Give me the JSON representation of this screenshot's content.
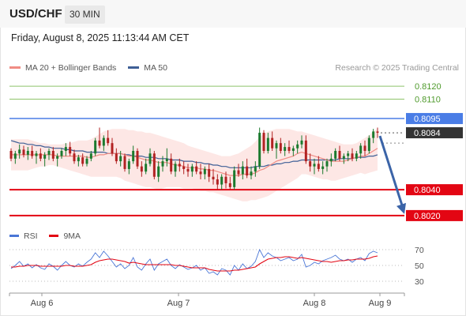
{
  "header": {
    "symbol": "USD/CHF",
    "timeframe": "30 MIN"
  },
  "datetime": "Friday, August 8, 2025 11:13:44 AM CET",
  "source": "Research © 2025 Trading Central",
  "colors": {
    "ma20": "#f08c84",
    "ma50": "#3e5f96",
    "bollinger_fill": "#fde3e1",
    "resistance_line": "#8ec46a",
    "resistance_text": "#4f9a2c",
    "pivot_line": "#4a7de6",
    "pivot_tag": "#4a7de6",
    "support_line": "#e30613",
    "support_tag": "#e30613",
    "last_price_tag": "#333333",
    "candle_bull": "#1b7a2e",
    "candle_bear": "#b22222",
    "rsi": "#4a76d6",
    "rsi_ma": "#e30613",
    "arrow": "#3b64a8"
  },
  "price_legend": [
    {
      "label": "MA 20 + Bollinger Bands",
      "color": "#f08c84"
    },
    {
      "label": "MA 50",
      "color": "#3e5f96"
    }
  ],
  "rsi_legend": [
    {
      "label": "RSI",
      "color": "#4a76d6"
    },
    {
      "label": "9MA",
      "color": "#e30613"
    }
  ],
  "chart_data": [
    {
      "type": "candlestick",
      "title": "",
      "x_tick_labels": [
        "Aug 6",
        "Aug 7",
        "Aug 8",
        "Aug 9"
      ],
      "y_range": [
        0.8012,
        0.8128
      ],
      "levels": [
        {
          "value": 0.812,
          "label": "0.8120",
          "kind": "resistance"
        },
        {
          "value": 0.811,
          "label": "0.8110",
          "kind": "resistance"
        },
        {
          "value": 0.8095,
          "label": "0.8095",
          "kind": "pivot"
        },
        {
          "value": 0.8084,
          "label": "0.8084",
          "kind": "last"
        },
        {
          "value": 0.804,
          "label": "0.8040",
          "kind": "support"
        },
        {
          "value": 0.802,
          "label": "0.8020",
          "kind": "support"
        }
      ],
      "candles_ohlc": [
        [
          0.807,
          0.8072,
          0.8062,
          0.8064
        ],
        [
          0.8064,
          0.807,
          0.806,
          0.8068
        ],
        [
          0.8068,
          0.8075,
          0.8064,
          0.8071
        ],
        [
          0.8071,
          0.8074,
          0.8065,
          0.8067
        ],
        [
          0.8067,
          0.8073,
          0.8063,
          0.807
        ],
        [
          0.807,
          0.8074,
          0.8064,
          0.8066
        ],
        [
          0.8066,
          0.807,
          0.806,
          0.8068
        ],
        [
          0.8068,
          0.8072,
          0.8062,
          0.8064
        ],
        [
          0.8064,
          0.8069,
          0.8058,
          0.8067
        ],
        [
          0.8067,
          0.8072,
          0.8063,
          0.807
        ],
        [
          0.807,
          0.8073,
          0.8062,
          0.8064
        ],
        [
          0.8064,
          0.8068,
          0.8058,
          0.8066
        ],
        [
          0.8066,
          0.8072,
          0.8064,
          0.807
        ],
        [
          0.807,
          0.8076,
          0.8066,
          0.8073
        ],
        [
          0.8073,
          0.8077,
          0.8066,
          0.8068
        ],
        [
          0.8068,
          0.8071,
          0.806,
          0.8062
        ],
        [
          0.8062,
          0.8067,
          0.8058,
          0.8065
        ],
        [
          0.8065,
          0.8068,
          0.8058,
          0.806
        ],
        [
          0.806,
          0.8066,
          0.8058,
          0.8064
        ],
        [
          0.8064,
          0.807,
          0.8062,
          0.8068
        ],
        [
          0.8068,
          0.808,
          0.8066,
          0.8078
        ],
        [
          0.8078,
          0.8088,
          0.8072,
          0.8074
        ],
        [
          0.8074,
          0.8082,
          0.807,
          0.808
        ],
        [
          0.808,
          0.8086,
          0.8074,
          0.8076
        ],
        [
          0.8076,
          0.808,
          0.8066,
          0.8068
        ],
        [
          0.8068,
          0.8072,
          0.806,
          0.8062
        ],
        [
          0.8062,
          0.807,
          0.8058,
          0.8066
        ],
        [
          0.8066,
          0.8068,
          0.8054,
          0.8056
        ],
        [
          0.8056,
          0.8064,
          0.8052,
          0.8062
        ],
        [
          0.8062,
          0.8074,
          0.806,
          0.807
        ],
        [
          0.807,
          0.8072,
          0.8056,
          0.8058
        ],
        [
          0.8058,
          0.8062,
          0.805,
          0.8054
        ],
        [
          0.8054,
          0.8064,
          0.8052,
          0.806
        ],
        [
          0.806,
          0.8072,
          0.8058,
          0.8068
        ],
        [
          0.8068,
          0.807,
          0.8048,
          0.805
        ],
        [
          0.805,
          0.8062,
          0.8046,
          0.8058
        ],
        [
          0.8058,
          0.8066,
          0.8054,
          0.8062
        ],
        [
          0.8062,
          0.8072,
          0.8058,
          0.8064
        ],
        [
          0.8064,
          0.8068,
          0.8052,
          0.8054
        ],
        [
          0.8054,
          0.8062,
          0.805,
          0.806
        ],
        [
          0.806,
          0.8064,
          0.8054,
          0.8058
        ],
        [
          0.8058,
          0.8062,
          0.8052,
          0.8056
        ],
        [
          0.8056,
          0.806,
          0.805,
          0.8054
        ],
        [
          0.8054,
          0.806,
          0.805,
          0.8058
        ],
        [
          0.8058,
          0.8062,
          0.8052,
          0.8054
        ],
        [
          0.8054,
          0.806,
          0.8048,
          0.8052
        ],
        [
          0.8052,
          0.8058,
          0.8048,
          0.8056
        ],
        [
          0.8056,
          0.806,
          0.8046,
          0.805
        ],
        [
          0.805,
          0.8056,
          0.8044,
          0.8048
        ],
        [
          0.8048,
          0.8052,
          0.804,
          0.8044
        ],
        [
          0.8044,
          0.8052,
          0.804,
          0.805
        ],
        [
          0.805,
          0.8054,
          0.8041,
          0.8045
        ],
        [
          0.8045,
          0.805,
          0.804,
          0.8042
        ],
        [
          0.8042,
          0.8058,
          0.804,
          0.8055
        ],
        [
          0.8055,
          0.806,
          0.805,
          0.8052
        ],
        [
          0.8052,
          0.8062,
          0.8048,
          0.8058
        ],
        [
          0.8058,
          0.8064,
          0.8049,
          0.8051
        ],
        [
          0.8051,
          0.8058,
          0.8048,
          0.8054
        ],
        [
          0.8054,
          0.8062,
          0.805,
          0.8058
        ],
        [
          0.8058,
          0.8088,
          0.8056,
          0.8084
        ],
        [
          0.8084,
          0.8086,
          0.8068,
          0.807
        ],
        [
          0.807,
          0.8084,
          0.8068,
          0.808
        ],
        [
          0.808,
          0.8085,
          0.807,
          0.8072
        ],
        [
          0.8072,
          0.8078,
          0.8064,
          0.8076
        ],
        [
          0.8076,
          0.808,
          0.8068,
          0.807
        ],
        [
          0.807,
          0.8076,
          0.8066,
          0.8073
        ],
        [
          0.8073,
          0.8078,
          0.8068,
          0.807
        ],
        [
          0.807,
          0.8074,
          0.8066,
          0.8072
        ],
        [
          0.8072,
          0.8078,
          0.8068,
          0.8075
        ],
        [
          0.8075,
          0.8082,
          0.8072,
          0.8078
        ],
        [
          0.8078,
          0.8082,
          0.806,
          0.8062
        ],
        [
          0.8062,
          0.8068,
          0.8054,
          0.8058
        ],
        [
          0.8058,
          0.8064,
          0.8052,
          0.806
        ],
        [
          0.806,
          0.8066,
          0.8054,
          0.8056
        ],
        [
          0.8056,
          0.8062,
          0.8052,
          0.8058
        ],
        [
          0.8058,
          0.8064,
          0.8054,
          0.8062
        ],
        [
          0.8062,
          0.8068,
          0.8058,
          0.8064
        ],
        [
          0.8064,
          0.8072,
          0.8062,
          0.807
        ],
        [
          0.807,
          0.8074,
          0.8062,
          0.8064
        ],
        [
          0.8064,
          0.8068,
          0.806,
          0.8066
        ],
        [
          0.8066,
          0.807,
          0.8062,
          0.8068
        ],
        [
          0.8068,
          0.8072,
          0.8062,
          0.8064
        ],
        [
          0.8064,
          0.807,
          0.8062,
          0.8068
        ],
        [
          0.8068,
          0.8076,
          0.8064,
          0.8074
        ],
        [
          0.8074,
          0.8078,
          0.8066,
          0.807
        ],
        [
          0.807,
          0.8082,
          0.8068,
          0.808
        ],
        [
          0.808,
          0.8087,
          0.8076,
          0.8085
        ],
        [
          0.8085,
          0.8088,
          0.808,
          0.8084
        ]
      ],
      "ma20": [
        0.8067,
        0.8067,
        0.8067,
        0.8067,
        0.8067,
        0.8067,
        0.8067,
        0.8067,
        0.8067,
        0.8067,
        0.8067,
        0.8066,
        0.8066,
        0.8066,
        0.8066,
        0.8066,
        0.8066,
        0.8066,
        0.8065,
        0.8065,
        0.8066,
        0.8067,
        0.8067,
        0.8068,
        0.8068,
        0.8068,
        0.8068,
        0.8067,
        0.8066,
        0.8066,
        0.8065,
        0.8064,
        0.8063,
        0.8063,
        0.8062,
        0.8061,
        0.8061,
        0.8061,
        0.806,
        0.8059,
        0.8059,
        0.8058,
        0.8057,
        0.8057,
        0.8057,
        0.8056,
        0.8056,
        0.8055,
        0.8055,
        0.8054,
        0.8053,
        0.8052,
        0.8051,
        0.8051,
        0.8051,
        0.8052,
        0.8052,
        0.8052,
        0.8053,
        0.8055,
        0.8056,
        0.8058,
        0.806,
        0.8062,
        0.8063,
        0.8064,
        0.8065,
        0.8066,
        0.8068,
        0.8069,
        0.8068,
        0.8067,
        0.8066,
        0.8065,
        0.8064,
        0.8063,
        0.8062,
        0.8062,
        0.8062,
        0.8062,
        0.8063,
        0.8064,
        0.8065,
        0.8066,
        0.8066,
        0.8068,
        0.807,
        0.8072
      ],
      "bollinger_upper": [
        0.8079,
        0.8079,
        0.8079,
        0.8079,
        0.8079,
        0.8078,
        0.8077,
        0.8076,
        0.8076,
        0.8075,
        0.8075,
        0.8075,
        0.8075,
        0.8076,
        0.8076,
        0.8077,
        0.8078,
        0.8078,
        0.8078,
        0.8079,
        0.8081,
        0.8083,
        0.8085,
        0.8086,
        0.8087,
        0.8087,
        0.8087,
        0.8087,
        0.8086,
        0.8086,
        0.8085,
        0.8085,
        0.8084,
        0.8084,
        0.8083,
        0.8082,
        0.8081,
        0.808,
        0.8079,
        0.8078,
        0.8077,
        0.8076,
        0.8074,
        0.8073,
        0.8072,
        0.8071,
        0.807,
        0.8069,
        0.8068,
        0.8067,
        0.8066,
        0.8066,
        0.8066,
        0.8067,
        0.8068,
        0.807,
        0.8072,
        0.8074,
        0.8077,
        0.8081,
        0.8083,
        0.8085,
        0.8086,
        0.8087,
        0.8087,
        0.8087,
        0.8087,
        0.8086,
        0.8085,
        0.8085,
        0.8084,
        0.8083,
        0.8082,
        0.8081,
        0.808,
        0.8079,
        0.8078,
        0.8077,
        0.8076,
        0.8075,
        0.8075,
        0.8075,
        0.8076,
        0.8078,
        0.808,
        0.8082,
        0.8085,
        0.8087
      ],
      "bollinger_lower": [
        0.8055,
        0.8055,
        0.8055,
        0.8055,
        0.8055,
        0.8056,
        0.8057,
        0.8058,
        0.8058,
        0.8059,
        0.8059,
        0.8058,
        0.8057,
        0.8056,
        0.8055,
        0.8054,
        0.8053,
        0.8052,
        0.8051,
        0.805,
        0.805,
        0.805,
        0.805,
        0.805,
        0.805,
        0.805,
        0.8049,
        0.8047,
        0.8046,
        0.8045,
        0.8044,
        0.8043,
        0.8042,
        0.8042,
        0.8041,
        0.804,
        0.8041,
        0.8042,
        0.8042,
        0.8042,
        0.8042,
        0.8041,
        0.8041,
        0.8041,
        0.804,
        0.8039,
        0.8039,
        0.8038,
        0.8038,
        0.8037,
        0.8036,
        0.8035,
        0.8034,
        0.8033,
        0.8032,
        0.8031,
        0.8031,
        0.8032,
        0.8032,
        0.8033,
        0.8034,
        0.8035,
        0.8037,
        0.8039,
        0.8041,
        0.8043,
        0.8045,
        0.8047,
        0.8049,
        0.8052,
        0.8052,
        0.8051,
        0.805,
        0.8049,
        0.8048,
        0.8048,
        0.8047,
        0.8047,
        0.8048,
        0.8049,
        0.805,
        0.8051,
        0.8052,
        0.8053,
        0.8052,
        0.8053,
        0.8054,
        0.8055
      ],
      "ma50": [
        0.8078,
        0.8077,
        0.8076,
        0.8076,
        0.8075,
        0.8075,
        0.8074,
        0.8074,
        0.8073,
        0.8073,
        0.8072,
        0.8072,
        0.8072,
        0.8071,
        0.8071,
        0.807,
        0.807,
        0.807,
        0.8069,
        0.8069,
        0.8069,
        0.8069,
        0.8069,
        0.8068,
        0.8068,
        0.8068,
        0.8068,
        0.8067,
        0.8067,
        0.8066,
        0.8066,
        0.8066,
        0.8065,
        0.8065,
        0.8065,
        0.8064,
        0.8064,
        0.8064,
        0.8063,
        0.8063,
        0.8063,
        0.8062,
        0.8062,
        0.8062,
        0.8061,
        0.8061,
        0.806,
        0.806,
        0.8059,
        0.8059,
        0.8058,
        0.8058,
        0.8057,
        0.8057,
        0.8057,
        0.8057,
        0.8057,
        0.8057,
        0.8058,
        0.8058,
        0.8058,
        0.8059,
        0.8059,
        0.806,
        0.806,
        0.8061,
        0.8061,
        0.8062,
        0.8062,
        0.8063,
        0.8063,
        0.8063,
        0.8063,
        0.8063,
        0.8063,
        0.8063,
        0.8063,
        0.8063,
        0.8064,
        0.8064,
        0.8064,
        0.8064,
        0.8065,
        0.8065,
        0.8065,
        0.8066,
        0.8066,
        0.8067
      ],
      "projection": {
        "from": 0.8084,
        "to": 0.802
      }
    },
    {
      "type": "line",
      "title": "",
      "y_range": [
        20,
        78
      ],
      "y_ticks": [
        70,
        50,
        30
      ],
      "series": [
        {
          "name": "RSI",
          "values": [
            46,
            50,
            55,
            49,
            52,
            47,
            51,
            47,
            45,
            52,
            49,
            44,
            50,
            55,
            50,
            48,
            52,
            49,
            54,
            58,
            66,
            60,
            68,
            62,
            55,
            48,
            52,
            46,
            50,
            60,
            48,
            44,
            52,
            58,
            44,
            52,
            55,
            58,
            50,
            46,
            51,
            48,
            45,
            47,
            50,
            44,
            47,
            40,
            42,
            38,
            46,
            44,
            38,
            50,
            44,
            52,
            46,
            49,
            55,
            70,
            60,
            66,
            62,
            60,
            56,
            58,
            60,
            56,
            58,
            64,
            48,
            50,
            54,
            52,
            56,
            58,
            60,
            63,
            58,
            56,
            58,
            54,
            58,
            60,
            56,
            65,
            68,
            66
          ],
          "color": "#4a76d6"
        },
        {
          "name": "9MA",
          "values": [
            48,
            48,
            49,
            49,
            50,
            50,
            50,
            49,
            49,
            49,
            49,
            49,
            49,
            50,
            50,
            49,
            49,
            49,
            50,
            51,
            54,
            56,
            57,
            58,
            58,
            57,
            56,
            55,
            53,
            54,
            53,
            52,
            51,
            51,
            51,
            51,
            51,
            51,
            51,
            50,
            50,
            49,
            48,
            47,
            47,
            47,
            47,
            45,
            44,
            43,
            43,
            43,
            43,
            44,
            44,
            45,
            46,
            47,
            48,
            52,
            55,
            58,
            59,
            60,
            60,
            61,
            61,
            60,
            59,
            60,
            59,
            58,
            57,
            56,
            55,
            55,
            54,
            55,
            56,
            56,
            57,
            57,
            58,
            58,
            58,
            59,
            61,
            62
          ],
          "color": "#e30613"
        }
      ]
    }
  ]
}
